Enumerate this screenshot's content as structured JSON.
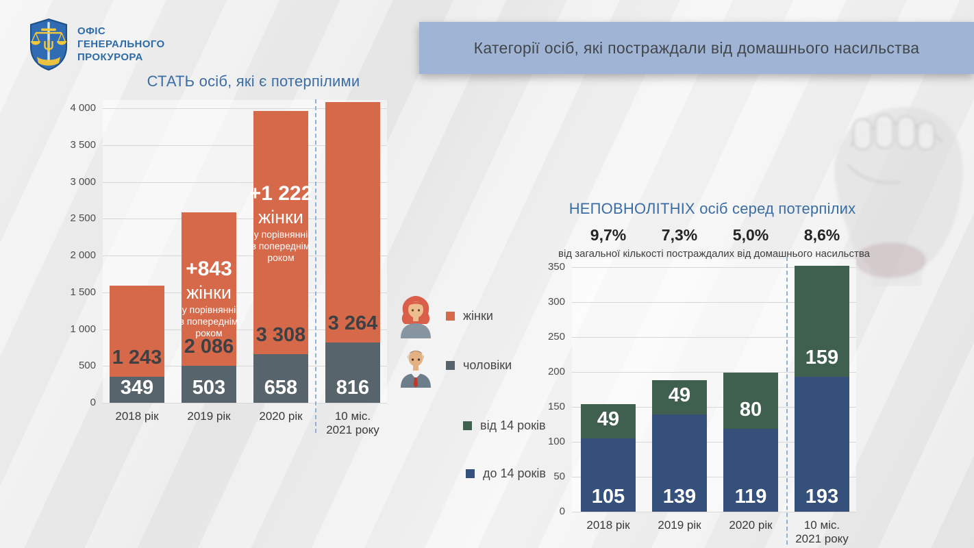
{
  "logo": {
    "org_lines": [
      "ОФІС",
      "ГЕНЕРАЛЬНОГО",
      "ПРОКУРОРА"
    ]
  },
  "header": {
    "title": "Категорії осіб, які постраждали від домашнього насильства"
  },
  "legend": {
    "items": [
      {
        "label": "жінки",
        "color": "#d5694a",
        "icon": "woman-avatar"
      },
      {
        "label": "чоловіки",
        "color": "#57646c",
        "icon": "man-avatar"
      },
      {
        "label": "від 14 років",
        "color": "#40604f"
      },
      {
        "label": "до 14 років",
        "color": "#35517b"
      }
    ]
  },
  "colors": {
    "title_blue": "#3a6da5",
    "header_bar": "#a0b5d5",
    "women_orange": "#d5694a",
    "men_slate": "#57646c",
    "over14_green": "#40604f",
    "under14_navy": "#35517b",
    "dashed_separator": "#8fafd4"
  },
  "chart_data": [
    {
      "id": "gender",
      "type": "bar",
      "stacked": true,
      "title": "СТАТЬ осіб, які є потерпілими",
      "categories": [
        [
          "2018 рік"
        ],
        [
          "2019 рік"
        ],
        [
          "2020 рік"
        ],
        [
          "10 міс.",
          "2021 року"
        ]
      ],
      "series": [
        {
          "name": "чоловіки",
          "color": "#57646c",
          "values": [
            349,
            503,
            658,
            816
          ],
          "labels": [
            "349",
            "503",
            "658",
            "816"
          ],
          "label_style": "light"
        },
        {
          "name": "жінки",
          "color": "#d5694a",
          "values": [
            1243,
            2086,
            3308,
            3264
          ],
          "labels": [
            "1 243",
            "2 086",
            "3 308",
            "3 264"
          ],
          "label_style": "dark"
        }
      ],
      "ylim": [
        0,
        4000
      ],
      "ytick_step": 500,
      "yticks": [
        "0",
        "500",
        "1 000",
        "1 500",
        "2 000",
        "2 500",
        "3 000",
        "3 500",
        "4 000"
      ],
      "grid": true,
      "legend_position": "right",
      "separator_after_category": "2020 рік",
      "annotations": [
        {
          "bar": 1,
          "big": "+843",
          "mid": "жінки",
          "small": [
            "у порівнянні",
            "з попереднім",
            "роком"
          ]
        },
        {
          "bar": 2,
          "big": "+1 222",
          "mid": "жінки",
          "small": [
            "у порівнянні",
            "з попереднім",
            "роком"
          ]
        }
      ]
    },
    {
      "id": "minors",
      "type": "bar",
      "stacked": true,
      "title": "НЕПОВНОЛІТНІХ осіб серед потерпілих",
      "percent": {
        "values": [
          "9,7%",
          "7,3%",
          "5,0%",
          "8,6%"
        ],
        "caption": "від загальної кількості постраждалих від домашнього насильства"
      },
      "categories": [
        [
          "2018 рік"
        ],
        [
          "2019 рік"
        ],
        [
          "2020 рік"
        ],
        [
          "10 міс.",
          "2021 року"
        ]
      ],
      "series": [
        {
          "name": "до 14 років",
          "color": "#35517b",
          "values": [
            105,
            139,
            119,
            193
          ],
          "labels": [
            "105",
            "139",
            "119",
            "193"
          ],
          "label_style": "light"
        },
        {
          "name": "від 14 років",
          "color": "#40604f",
          "values": [
            49,
            49,
            80,
            159
          ],
          "labels": [
            "49",
            "49",
            "80",
            "159"
          ],
          "label_style": "light"
        }
      ],
      "ylim": [
        0,
        350
      ],
      "ytick_step": 50,
      "yticks": [
        "0",
        "50",
        "100",
        "150",
        "200",
        "250",
        "300",
        "350"
      ],
      "grid": true,
      "separator_after_category": "2020 рік"
    }
  ]
}
